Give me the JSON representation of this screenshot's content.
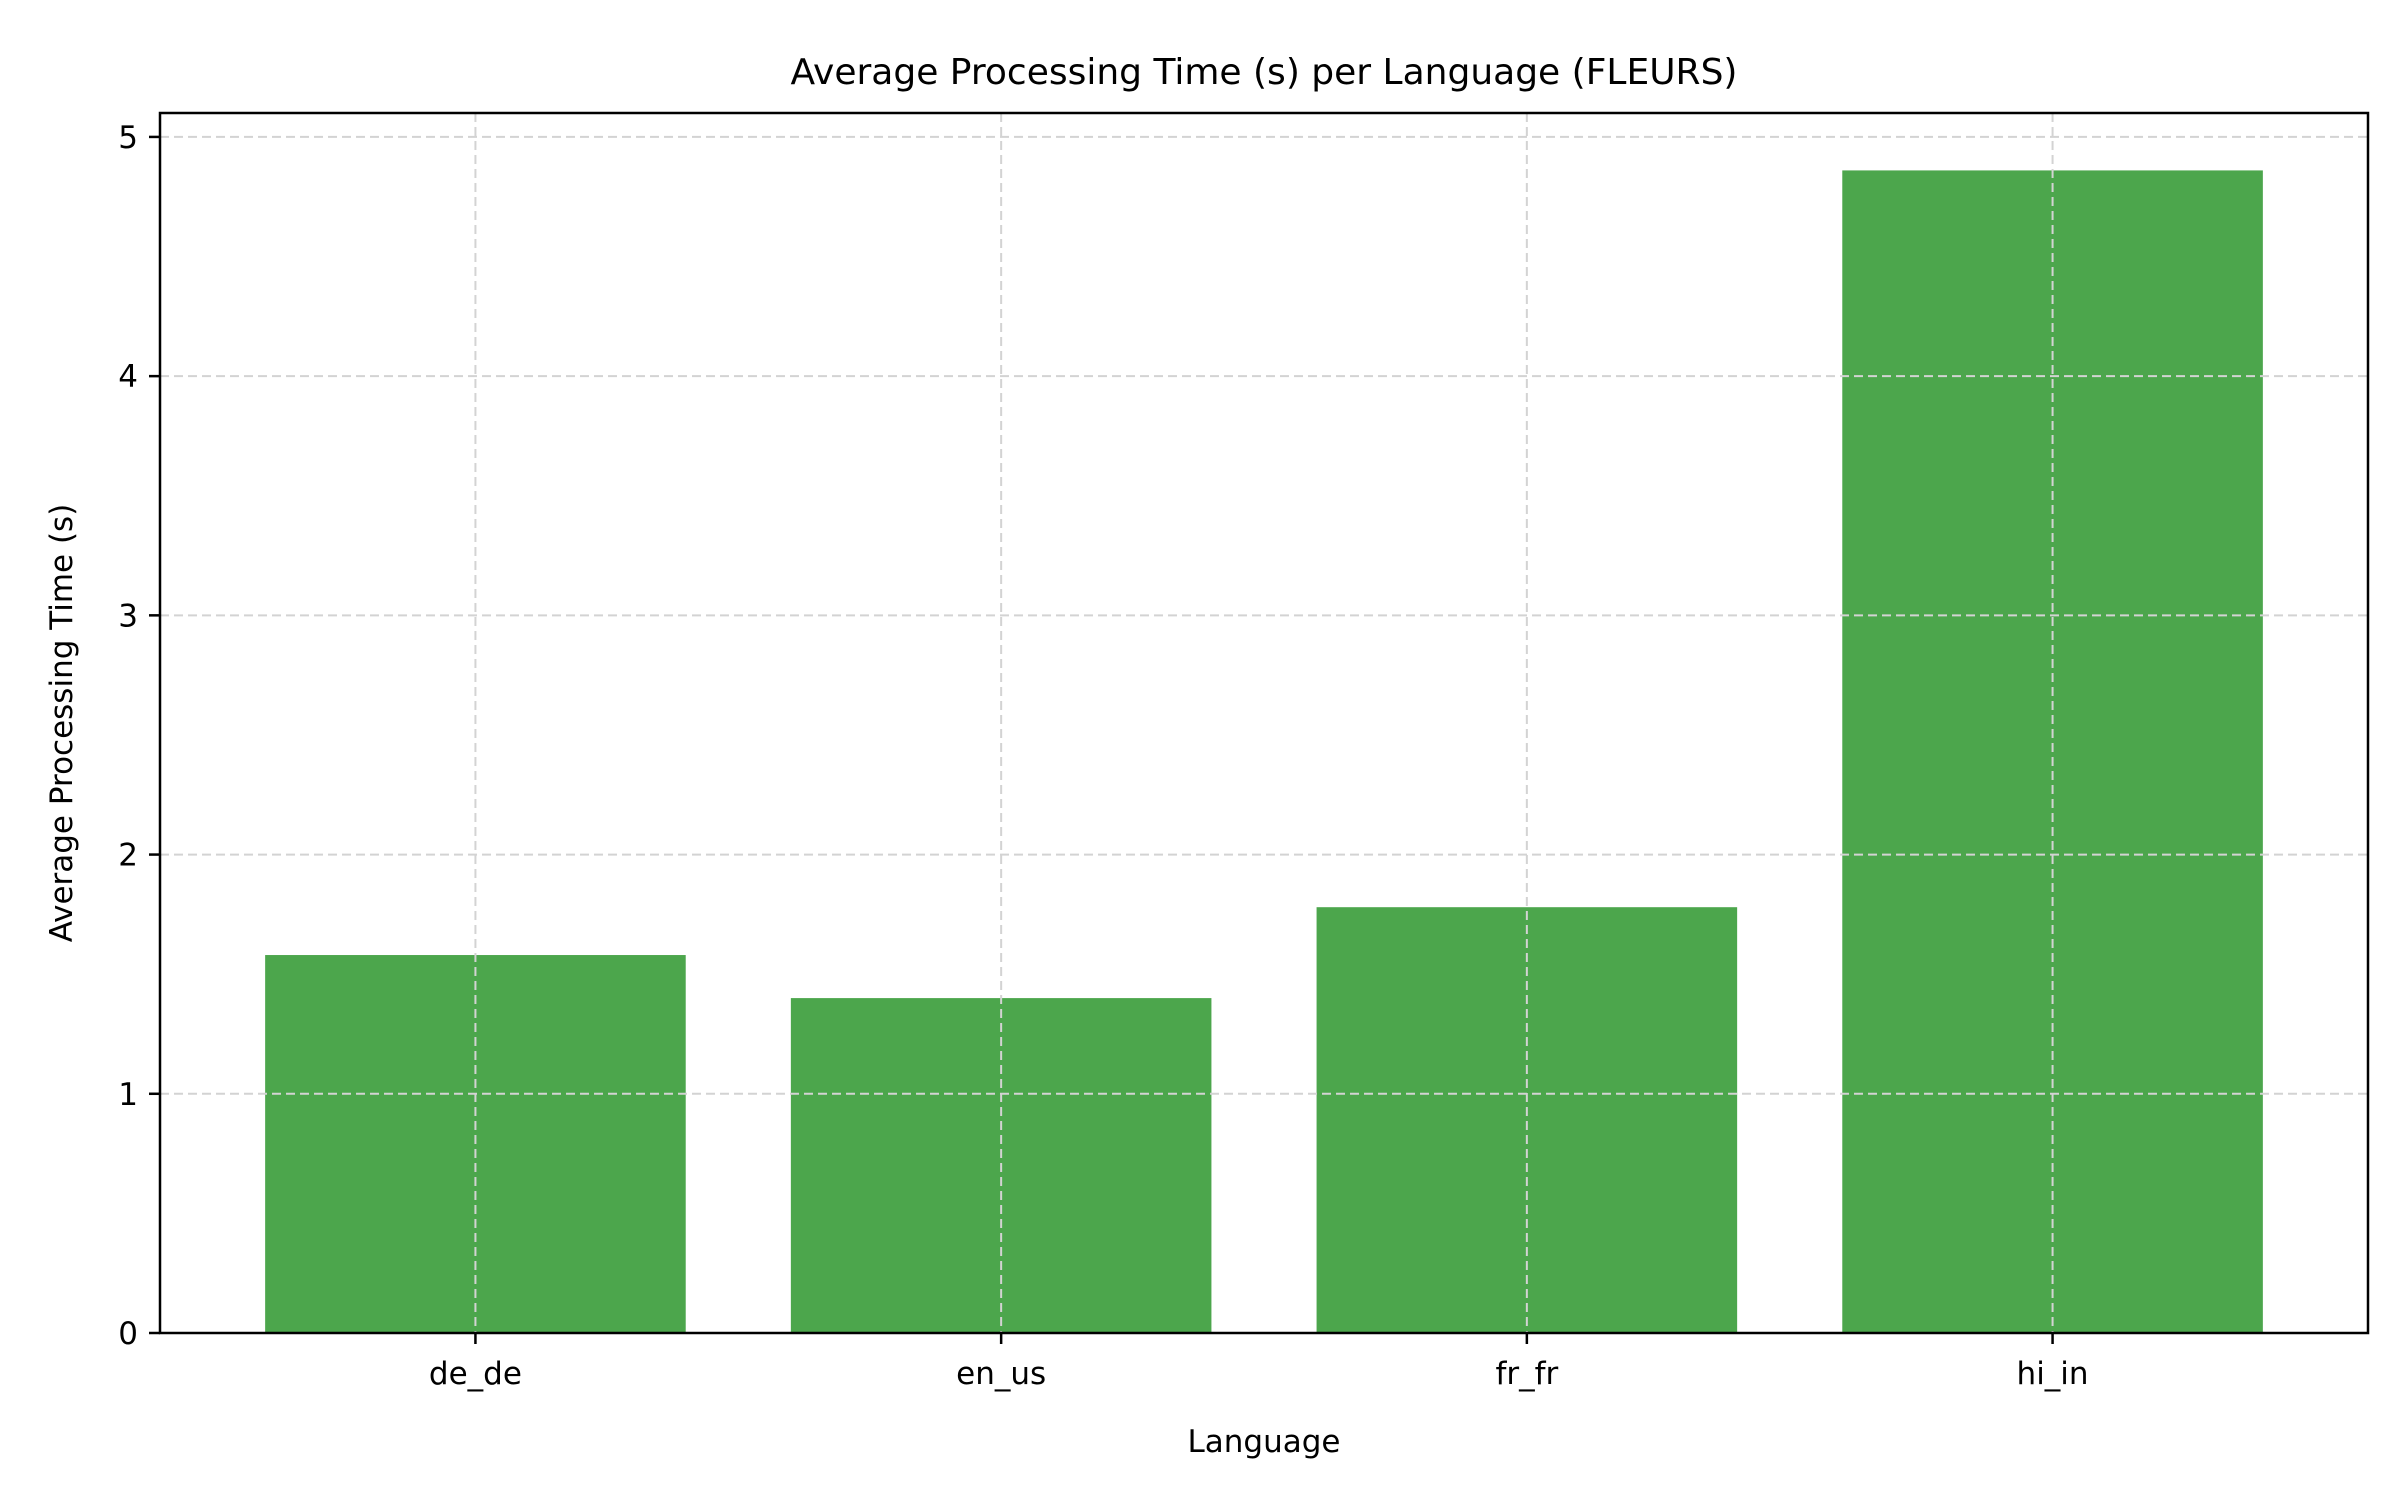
{
  "chart_data": {
    "type": "bar",
    "title": "Average Processing Time (s) per Language (FLEURS)",
    "xlabel": "Language",
    "ylabel": "Average Processing Time (s)",
    "categories": [
      "de_de",
      "en_us",
      "fr_fr",
      "hi_in"
    ],
    "values": [
      1.58,
      1.4,
      1.78,
      4.86
    ],
    "ylim": [
      0,
      5.1
    ],
    "yticks": [
      0,
      1,
      2,
      3,
      4,
      5
    ],
    "grid": true,
    "bar_color": "#4ca64c",
    "grid_color": "#d3d3d3"
  }
}
